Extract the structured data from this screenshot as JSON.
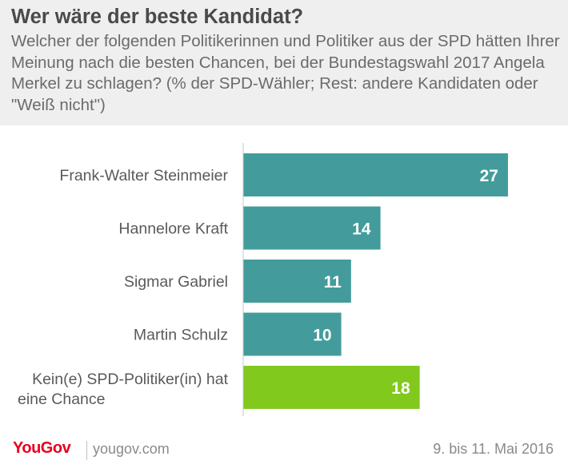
{
  "header": {
    "title": "Wer wäre der beste Kandidat?",
    "subtitle": "Welcher der folgenden Politikerinnen und Politiker aus der SPD hätten Ihrer Meinung nach die besten Chancen, bei der Bundestagswahl 2017 Angela Merkel zu schlagen? (% der SPD-Wähler; Rest: andere Kandidaten oder \"Weiß nicht\")"
  },
  "chart_data": {
    "type": "bar",
    "orientation": "horizontal",
    "categories": [
      "Frank-Walter Steinmeier",
      "Hannelore Kraft",
      "Sigmar Gabriel",
      "Martin Schulz",
      "Kein(e) SPD-Politiker(in) hat eine Chance"
    ],
    "values": [
      27,
      14,
      11,
      10,
      18
    ],
    "bar_colors": [
      "#439c9b",
      "#439c9b",
      "#439c9b",
      "#439c9b",
      "#82c91e"
    ],
    "xlim": [
      0,
      31
    ],
    "grid": false,
    "data_labels": true
  },
  "footer": {
    "brand": "YouGov",
    "site": "yougov.com",
    "date": "9. bis 11. Mai 2016"
  },
  "colors": {
    "teal_bar": "#439c9b",
    "green_bar": "#82c91e",
    "brand_red": "#e8001c",
    "header_bg": "#efefef"
  }
}
